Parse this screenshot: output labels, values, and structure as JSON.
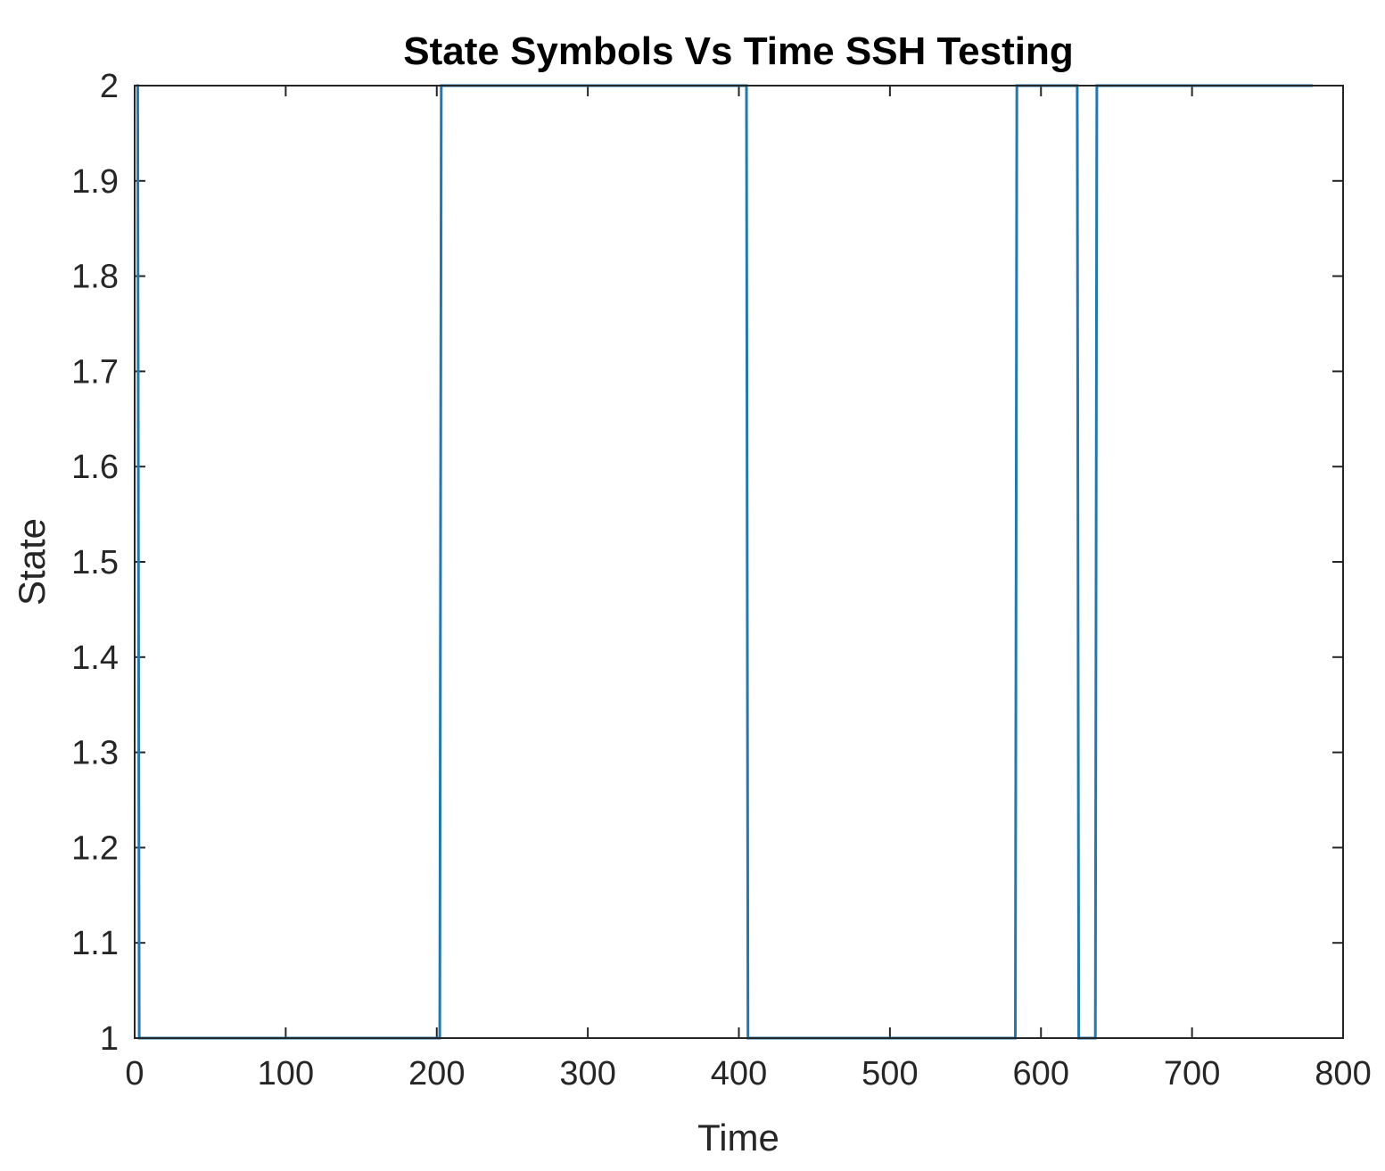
{
  "chart_data": {
    "type": "line",
    "title": "State Symbols Vs Time SSH Testing",
    "xlabel": "Time",
    "ylabel": "State",
    "xlim": [
      0,
      800
    ],
    "ylim": [
      1,
      2
    ],
    "xticks": [
      0,
      100,
      200,
      300,
      400,
      500,
      600,
      700,
      800
    ],
    "yticks": [
      1,
      1.1,
      1.2,
      1.3,
      1.4,
      1.5,
      1.6,
      1.7,
      1.8,
      1.9,
      2
    ],
    "xtick_labels": [
      "0",
      "100",
      "200",
      "300",
      "400",
      "500",
      "600",
      "700",
      "800"
    ],
    "ytick_labels": [
      "1",
      "1.1",
      "1.2",
      "1.3",
      "1.4",
      "1.5",
      "1.6",
      "1.7",
      "1.8",
      "1.9",
      "2"
    ],
    "grid": false,
    "line_color": "#1f77b4",
    "series": [
      {
        "x": [
          1,
          2,
          3,
          4,
          202,
          203,
          204,
          405,
          406,
          407,
          583,
          584,
          585,
          624,
          625,
          626,
          636,
          637,
          638,
          780
        ],
        "y": [
          2,
          2,
          1,
          1,
          1,
          2,
          2,
          2,
          1,
          1,
          1,
          2,
          2,
          2,
          1,
          1,
          1,
          2,
          2,
          2
        ]
      }
    ]
  }
}
